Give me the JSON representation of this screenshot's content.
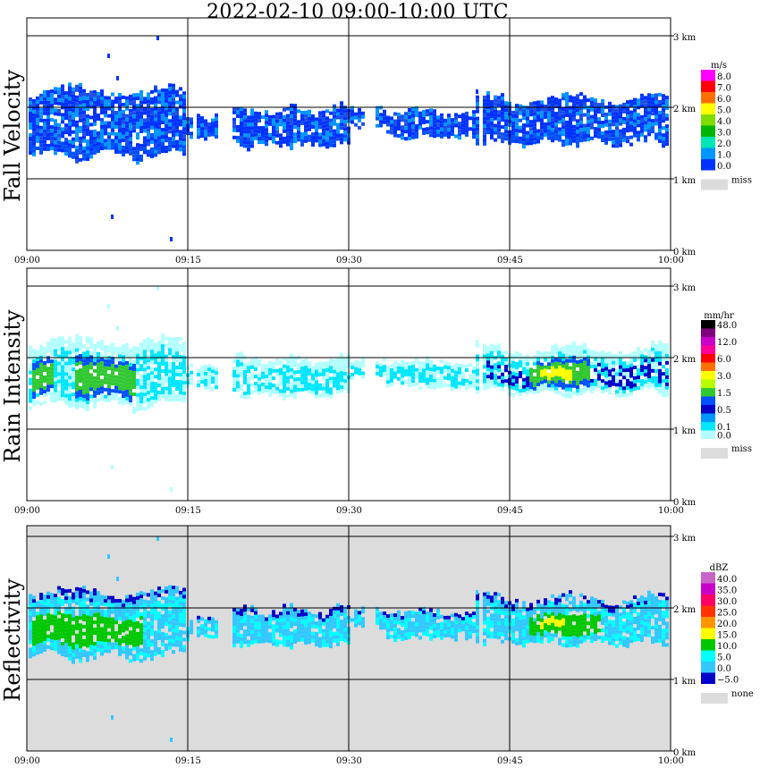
{
  "title": "2022-02-10   09:00-10:00 UTC",
  "x_ticks": [
    "09:00",
    "09:15",
    "09:30",
    "09:45",
    "10:00"
  ],
  "y_ticks": [
    "0 km",
    "1 km",
    "2 km",
    "3 km"
  ],
  "panels": [
    {
      "label": "Fall Velocity",
      "unit": "m/s",
      "background": "#ffffff",
      "legend": [
        {
          "value": "8.0",
          "color": "#ff00ff"
        },
        {
          "value": "7.0",
          "color": "#ff0000"
        },
        {
          "value": "6.0",
          "color": "#ff7000"
        },
        {
          "value": "5.0",
          "color": "#ffff00"
        },
        {
          "value": "4.0",
          "color": "#7fdc00"
        },
        {
          "value": "3.0",
          "color": "#00b400"
        },
        {
          "value": "2.0",
          "color": "#00e6b4"
        },
        {
          "value": "1.0",
          "color": "#0096ff"
        },
        {
          "value": "0.0",
          "color": "#0032ff"
        }
      ],
      "missing_label": "miss",
      "missing_color": "#dcdcdc"
    },
    {
      "label": "Rain Intensity",
      "unit": "mm/hr",
      "background": "#ffffff",
      "legend": [
        {
          "value": "48.0",
          "color": "#000000"
        },
        {
          "value": "",
          "color": "#7f007f"
        },
        {
          "value": "12.0",
          "color": "#c800c8"
        },
        {
          "value": "",
          "color": "#ff0096"
        },
        {
          "value": "6.0",
          "color": "#ff0000"
        },
        {
          "value": "",
          "color": "#ff7000"
        },
        {
          "value": "3.0",
          "color": "#ffff00"
        },
        {
          "value": "",
          "color": "#b4ff00"
        },
        {
          "value": "1.5",
          "color": "#32c832"
        },
        {
          "value": "",
          "color": "#0050ff"
        },
        {
          "value": "0.5",
          "color": "#0000c8"
        },
        {
          "value": "",
          "color": "#0096ff"
        },
        {
          "value": "0.1",
          "color": "#00e6ff"
        },
        {
          "value": "0.0",
          "color": "#b4ffff"
        }
      ],
      "missing_label": "miss",
      "missing_color": "#dcdcdc"
    },
    {
      "label": "Reflectivity",
      "unit": "dBZ",
      "background": "#dcdcdc",
      "legend": [
        {
          "value": "40.0",
          "color": "#c864c8"
        },
        {
          "value": "35.0",
          "color": "#c800c8"
        },
        {
          "value": "30.0",
          "color": "#ff0064"
        },
        {
          "value": "25.0",
          "color": "#ff3200"
        },
        {
          "value": "20.0",
          "color": "#ff9600"
        },
        {
          "value": "15.0",
          "color": "#ffff00"
        },
        {
          "value": "10.0",
          "color": "#00c800"
        },
        {
          "value": "5.0",
          "color": "#00ffff"
        },
        {
          "value": "0.0",
          "color": "#32c8ff"
        },
        {
          "value": "−5.0",
          "color": "#0000c8"
        }
      ],
      "missing_label": "none",
      "missing_color": "#dcdcdc"
    }
  ],
  "chart_data": {
    "type": "heatmap",
    "title": "2022-02-10   09:00-10:00 UTC",
    "x_range": [
      "09:00",
      "10:00"
    ],
    "y_range_km": [
      0,
      3
    ],
    "grid": true,
    "panels": [
      "Fall Velocity",
      "Rain Intensity",
      "Reflectivity"
    ],
    "echo_layer_km": [
      1.3,
      2.2
    ],
    "notes": "Continuous precipitation echo between about 1.3 and 2.2 km across the hour; strongest core near 09:48–09:52 at about 1.7 km."
  }
}
